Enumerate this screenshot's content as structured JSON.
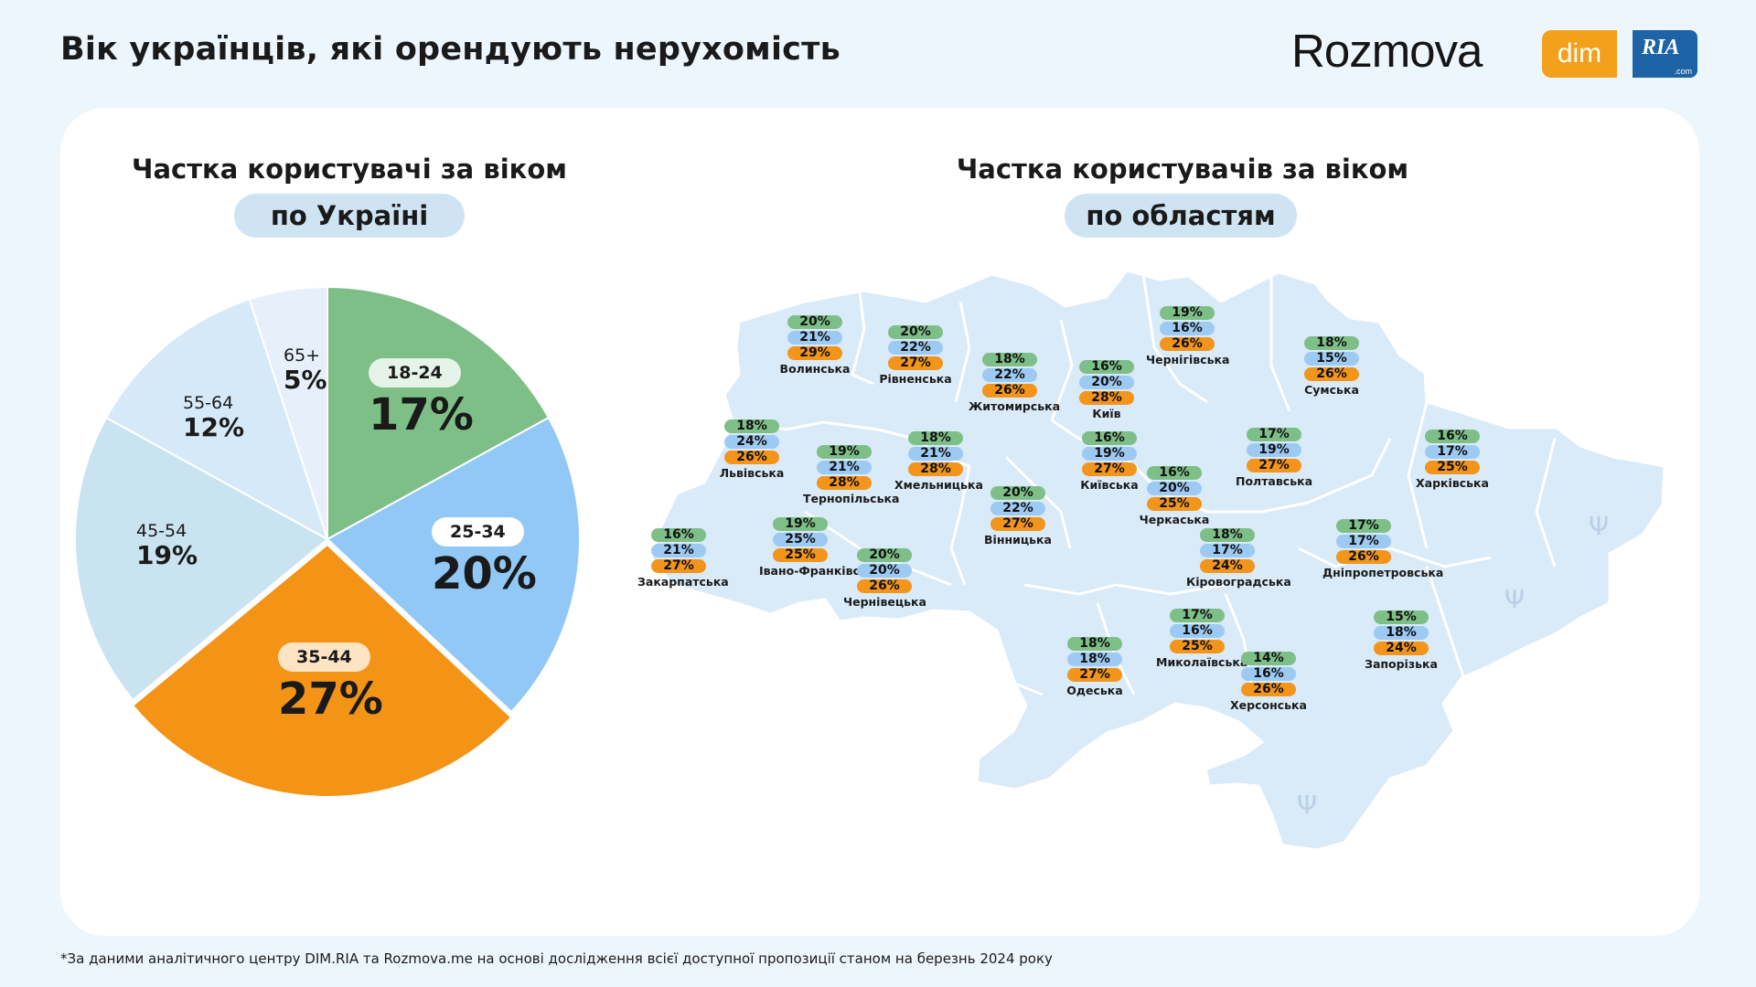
{
  "header": {
    "title": "Вік українців, які орендують нерухомість",
    "logo_rozmova": "Rozmova",
    "logo_dim": "dim",
    "logo_ria": "RIA",
    "logo_ria_suffix": ".com"
  },
  "left": {
    "title": "Частка користувачі за віком",
    "pill": "по Україні"
  },
  "right": {
    "title": "Частка користувачів за віком",
    "pill": "по областям"
  },
  "colors": {
    "green": "#7dbf87",
    "blue": "#91c8f5",
    "orange": "#f39417",
    "light_blue": "#c9e3f0",
    "pale_blue": "#d6e9f8",
    "paler_blue": "#e7f0fa",
    "map_fill": "#d9eaf8"
  },
  "chart_data": [
    {
      "type": "pie",
      "title": "Частка користувачі за віком",
      "subtitle": "по Україні",
      "slices": [
        {
          "label": "18-24",
          "value": 17,
          "display": "17%",
          "color": "#7dbf87"
        },
        {
          "label": "25-34",
          "value": 20,
          "display": "20%",
          "color": "#91c8f5"
        },
        {
          "label": "35-44",
          "value": 27,
          "display": "27%",
          "color": "#f39417"
        },
        {
          "label": "45-54",
          "value": 19,
          "display": "19%",
          "color": "#c9e3f0"
        },
        {
          "label": "55-64",
          "value": 12,
          "display": "12%",
          "color": "#d6e9f8"
        },
        {
          "label": "65+",
          "value": 5,
          "display": "5%",
          "color": "#e7f0fa"
        }
      ]
    },
    {
      "type": "table",
      "title": "Частка користувачів за віком",
      "subtitle": "по областям",
      "columns": [
        "green",
        "blue",
        "orange"
      ],
      "rows": [
        {
          "region": "Волинська",
          "values": [
            "20%",
            "21%",
            "29%"
          ]
        },
        {
          "region": "Рівненська",
          "values": [
            "20%",
            "22%",
            "27%"
          ]
        },
        {
          "region": "Житомирська",
          "values": [
            "18%",
            "22%",
            "26%"
          ]
        },
        {
          "region": "Київ",
          "values": [
            "16%",
            "20%",
            "28%"
          ]
        },
        {
          "region": "Чернігівська",
          "values": [
            "19%",
            "16%",
            "26%"
          ]
        },
        {
          "region": "Сумська",
          "values": [
            "18%",
            "15%",
            "26%"
          ]
        },
        {
          "region": "Львівська",
          "values": [
            "18%",
            "24%",
            "26%"
          ]
        },
        {
          "region": "Тернопільська",
          "values": [
            "19%",
            "21%",
            "28%"
          ]
        },
        {
          "region": "Хмельницька",
          "values": [
            "18%",
            "21%",
            "28%"
          ]
        },
        {
          "region": "Київська",
          "values": [
            "16%",
            "19%",
            "27%"
          ]
        },
        {
          "region": "Полтавська",
          "values": [
            "17%",
            "19%",
            "27%"
          ]
        },
        {
          "region": "Харківська",
          "values": [
            "16%",
            "17%",
            "25%"
          ]
        },
        {
          "region": "Вінницька",
          "values": [
            "20%",
            "22%",
            "27%"
          ]
        },
        {
          "region": "Черкаська",
          "values": [
            "16%",
            "20%",
            "25%"
          ]
        },
        {
          "region": "Закарпатська",
          "values": [
            "16%",
            "21%",
            "27%"
          ]
        },
        {
          "region": "Івано-Франківська",
          "values": [
            "19%",
            "25%",
            "25%"
          ]
        },
        {
          "region": "Чернівецька",
          "values": [
            "20%",
            "20%",
            "26%"
          ]
        },
        {
          "region": "Кіровоградська",
          "values": [
            "18%",
            "17%",
            "24%"
          ]
        },
        {
          "region": "Дніпропетровська",
          "values": [
            "17%",
            "17%",
            "26%"
          ]
        },
        {
          "region": "Одеська",
          "values": [
            "18%",
            "18%",
            "27%"
          ]
        },
        {
          "region": "Миколаївська",
          "values": [
            "17%",
            "16%",
            "25%"
          ]
        },
        {
          "region": "Херсонська",
          "values": [
            "14%",
            "16%",
            "26%"
          ]
        },
        {
          "region": "Запорізька",
          "values": [
            "15%",
            "18%",
            "24%"
          ]
        }
      ]
    }
  ],
  "footnote": "*За даними аналітичного центру DIM.RIA та Rozmova.me на основі дослідження всієї доступної пропозиції станом на березнь 2024 року"
}
